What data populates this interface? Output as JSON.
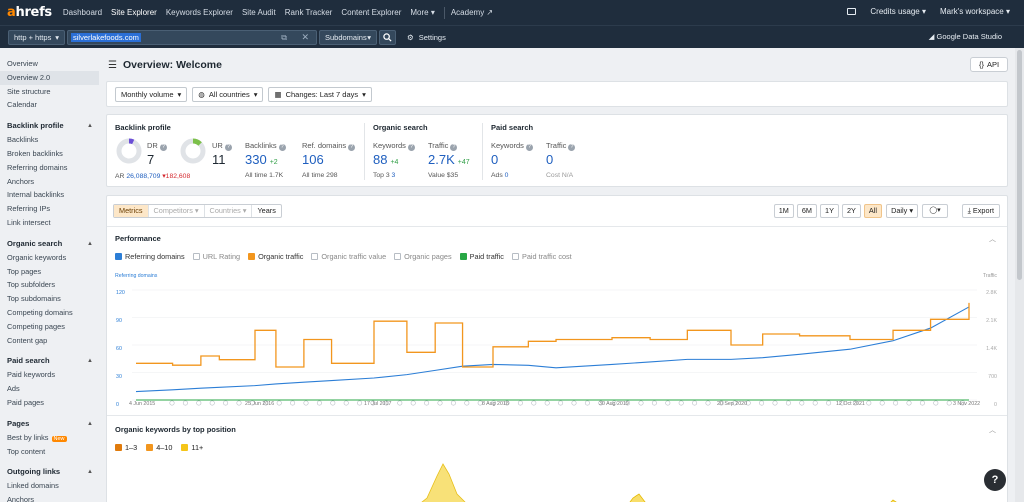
{
  "app": {
    "logo_a": "a",
    "logo_rest": "hrefs",
    "nav": [
      "Dashboard",
      "Site Explorer",
      "Keywords Explorer",
      "Site Audit",
      "Rank Tracker",
      "Content Explorer",
      "More ▾"
    ],
    "academy": "Academy ↗",
    "credits": "Credits usage ▾",
    "workspace": "Mark's workspace ▾"
  },
  "search": {
    "protocol": "http + https",
    "target": "silverlakefoods.com",
    "mode": "Subdomains",
    "settings": "Settings",
    "gds": "Google Data Studio"
  },
  "sidebar": {
    "top": [
      "Overview",
      "Overview 2.0",
      "Site structure",
      "Calendar"
    ],
    "sections": [
      {
        "title": "Backlink profile",
        "items": [
          "Backlinks",
          "Broken backlinks",
          "Referring domains",
          "Anchors",
          "Internal backlinks",
          "Referring IPs",
          "Link intersect"
        ]
      },
      {
        "title": "Organic search",
        "items": [
          "Organic keywords",
          "Top pages",
          "Top subfolders",
          "Top subdomains",
          "Competing domains",
          "Competing pages",
          "Content gap"
        ]
      },
      {
        "title": "Paid search",
        "items": [
          "Paid keywords",
          "Ads",
          "Paid pages"
        ]
      },
      {
        "title": "Pages",
        "items": [
          "Best by links",
          "Top content"
        ]
      },
      {
        "title": "Outgoing links",
        "items": [
          "Linked domains",
          "Anchors"
        ]
      }
    ],
    "new_badge": "New"
  },
  "page": {
    "title": "Overview: Welcome",
    "api": "API",
    "filters": [
      "Monthly volume",
      "All countries",
      "Changes: Last 7 days"
    ]
  },
  "metrics": {
    "backlink_title": "Backlink profile",
    "organic_title": "Organic search",
    "paid_title": "Paid search",
    "dr_label": "DR",
    "dr": "7",
    "ur_label": "UR",
    "ur": "11",
    "ar_label": "AR",
    "ar": "26,088,709",
    "ar_delta": "▾182,608",
    "backlinks_label": "Backlinks",
    "backlinks": "330",
    "backlinks_delta": "+2",
    "backlinks_all": "All time 1.7K",
    "refdomains_label": "Ref. domains",
    "refdomains": "106",
    "refdomains_all": "All time 298",
    "kw_label": "Keywords",
    "kw": "88",
    "kw_delta": "+4",
    "kw_top3_label": "Top 3",
    "kw_top3": "3",
    "traffic_label": "Traffic",
    "traffic": "2.7K",
    "traffic_delta": "+47",
    "traffic_value_label": "Value",
    "traffic_value": "$35",
    "paid_kw_label": "Keywords",
    "paid_kw": "0",
    "ads_label": "Ads",
    "ads": "0",
    "paid_traffic_label": "Traffic",
    "paid_traffic": "0",
    "cost_label": "Cost",
    "cost": "N/A"
  },
  "chart_tabs": [
    "Metrics",
    "Competitors ▾",
    "Countries ▾",
    "Years"
  ],
  "ranges": [
    "1M",
    "6M",
    "1Y",
    "2Y",
    "All"
  ],
  "daily": "Daily ▾",
  "export": "Export",
  "performance": {
    "title": "Performance",
    "legend": [
      {
        "label": "Referring domains",
        "checked": true,
        "color": "#2c7ed6"
      },
      {
        "label": "URL Rating",
        "checked": false
      },
      {
        "label": "Organic traffic",
        "checked": true,
        "color": "#f2961e"
      },
      {
        "label": "Organic traffic value",
        "checked": false
      },
      {
        "label": "Organic pages",
        "checked": false
      },
      {
        "label": "Paid traffic",
        "checked": true,
        "color": "#28a745"
      },
      {
        "label": "Paid traffic cost",
        "checked": false
      }
    ],
    "left_axis_title": "Referring domains",
    "right_axis_title": "Traffic",
    "left_ticks": [
      "120",
      "90",
      "60",
      "30",
      "0"
    ],
    "right_ticks": [
      "2.8K",
      "2.1K",
      "1.4K",
      "700",
      "0"
    ],
    "x_ticks": [
      "4 Jun 2015",
      "25 Jun 2016",
      "17 Jul 2017",
      "8 Aug 2018",
      "30 Aug 2019",
      "20 Sep 2020",
      "12 Oct 2021",
      "3 Nov 2022"
    ]
  },
  "keywords_by_position": {
    "title": "Organic keywords by top position",
    "legend": [
      {
        "label": "1–3",
        "color": "#f2961e"
      },
      {
        "label": "4–10",
        "color": "#f2961e"
      },
      {
        "label": "11+",
        "color": "#f5c518"
      }
    ]
  },
  "chart_data": {
    "type": "line",
    "x": [
      "2015-06-04",
      "2015-10-01",
      "2016-01-01",
      "2016-03-01",
      "2016-06-25",
      "2016-09-01",
      "2016-12-01",
      "2017-03-01",
      "2017-07-17",
      "2017-11-01",
      "2018-02-01",
      "2018-05-01",
      "2018-08-08",
      "2018-12-01",
      "2019-03-01",
      "2019-08-30",
      "2020-01-01",
      "2020-05-01",
      "2020-09-20",
      "2021-01-01",
      "2021-05-01",
      "2021-10-12",
      "2022-03-01",
      "2022-07-01",
      "2022-11-03"
    ],
    "series": [
      {
        "name": "Referring domains",
        "axis": "left",
        "color": "#2c7ed6",
        "values": [
          10,
          12,
          14,
          15,
          17,
          19,
          21,
          23,
          26,
          30,
          35,
          40,
          42,
          41,
          38,
          42,
          45,
          48,
          48,
          50,
          54,
          60,
          70,
          85,
          110
        ]
      },
      {
        "name": "Organic traffic",
        "axis": "right",
        "color": "#f2961e",
        "values": [
          1000,
          950,
          1200,
          1100,
          1900,
          900,
          1650,
          1000,
          2150,
          1300,
          2100,
          900,
          1450,
          1600,
          1650,
          1700,
          1650,
          1900,
          1500,
          1800,
          1750,
          1650,
          1900,
          2200,
          2650
        ]
      },
      {
        "name": "Paid traffic",
        "axis": "right",
        "color": "#28a745",
        "values": [
          0,
          0,
          0,
          0,
          0,
          0,
          0,
          0,
          0,
          0,
          0,
          0,
          0,
          0,
          0,
          0,
          0,
          0,
          0,
          0,
          0,
          0,
          0,
          0,
          0
        ]
      }
    ],
    "left_ylim": [
      0,
      130
    ],
    "right_ylim": [
      0,
      3000
    ],
    "xlabel": "",
    "ylabel": "Referring domains"
  },
  "help": "?"
}
